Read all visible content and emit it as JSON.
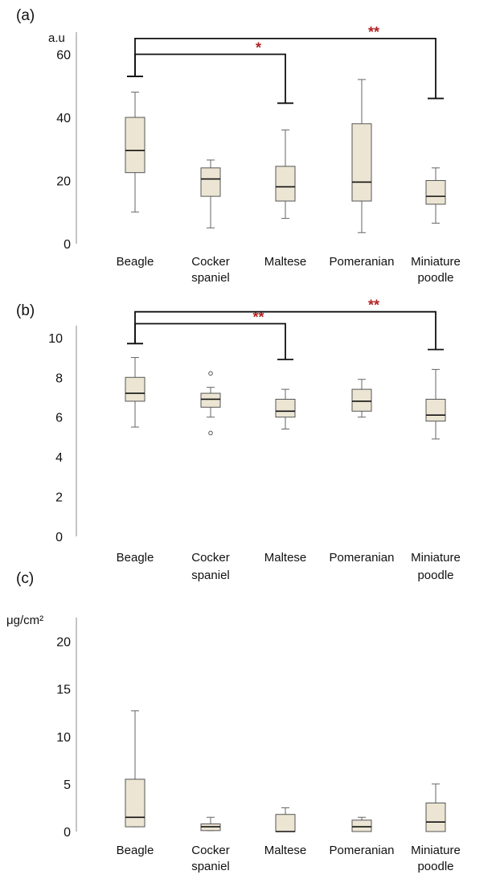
{
  "colors": {
    "box_fill": "#ECE5D3",
    "box_stroke": "#555555",
    "star": "#B22222"
  },
  "chart_data": [
    {
      "type": "box",
      "panel_label": "(a)",
      "ylabel": "a.u",
      "ylim": [
        0,
        67
      ],
      "yticks": [
        0,
        20,
        40,
        60
      ],
      "categories": [
        "Beagle",
        "Cocker spaniel",
        "Maltese",
        "Pomeranian",
        "Miniature poodle"
      ],
      "category_lines": [
        [
          "Beagle"
        ],
        [
          "Cocker",
          "spaniel"
        ],
        [
          "Maltese"
        ],
        [
          "Pomeranian"
        ],
        [
          "Miniature",
          "poodle"
        ]
      ],
      "boxes": [
        {
          "min": 10,
          "q1": 22.5,
          "median": 29.5,
          "q3": 40,
          "max": 48
        },
        {
          "min": 5,
          "q1": 15,
          "median": 20.5,
          "q3": 24,
          "max": 26.5
        },
        {
          "min": 8,
          "q1": 13.5,
          "median": 18,
          "q3": 24.5,
          "max": 36
        },
        {
          "min": 3.5,
          "q1": 13.5,
          "median": 19.5,
          "q3": 38,
          "max": 52
        },
        {
          "min": 6.5,
          "q1": 12.5,
          "median": 15,
          "q3": 20,
          "max": 24
        }
      ],
      "outliers": [],
      "significance": [
        {
          "from": 0,
          "to": 2,
          "label": "*",
          "y": 60,
          "foot_left": 53,
          "foot_right": 44.5
        },
        {
          "from": 0,
          "to": 4,
          "label": "**",
          "y": 65,
          "foot_left": 53,
          "foot_right": 46
        }
      ]
    },
    {
      "type": "box",
      "panel_label": "(b)",
      "ylabel": "",
      "ylim": [
        0,
        10.6
      ],
      "yticks": [
        0,
        2,
        4,
        6,
        8,
        10
      ],
      "categories": [
        "Beagle",
        "Cocker spaniel",
        "Maltese",
        "Pomeranian",
        "Miniature poodle"
      ],
      "category_lines": [
        [
          "Beagle"
        ],
        [
          "Cocker",
          "spaniel"
        ],
        [
          "Maltese"
        ],
        [
          "Pomeranian"
        ],
        [
          "Miniature",
          "poodle"
        ]
      ],
      "boxes": [
        {
          "min": 5.5,
          "q1": 6.8,
          "median": 7.2,
          "q3": 8.0,
          "max": 9.0
        },
        {
          "min": 6.0,
          "q1": 6.5,
          "median": 6.9,
          "q3": 7.2,
          "max": 7.5
        },
        {
          "min": 5.4,
          "q1": 6.0,
          "median": 6.3,
          "q3": 6.9,
          "max": 7.4
        },
        {
          "min": 6.0,
          "q1": 6.3,
          "median": 6.8,
          "q3": 7.4,
          "max": 7.9
        },
        {
          "min": 4.9,
          "q1": 5.8,
          "median": 6.1,
          "q3": 6.9,
          "max": 8.4
        }
      ],
      "outliers": [
        {
          "category": 1,
          "value": 8.2
        },
        {
          "category": 1,
          "value": 5.2
        }
      ],
      "significance": [
        {
          "from": 0,
          "to": 2,
          "label": "**",
          "y": 10.7,
          "foot_left": 9.7,
          "foot_right": 8.9
        },
        {
          "from": 0,
          "to": 4,
          "label": "**",
          "y": 11.3,
          "foot_left": 9.7,
          "foot_right": 9.4
        }
      ]
    },
    {
      "type": "box",
      "panel_label": "(c)",
      "ylabel": "μg/cm²",
      "ylim": [
        0,
        22.5
      ],
      "yticks": [
        0,
        5,
        10,
        15,
        20
      ],
      "categories": [
        "Beagle",
        "Cocker spaniel",
        "Maltese",
        "Pomeranian",
        "Miniature poodle"
      ],
      "category_lines": [
        [
          "Beagle"
        ],
        [
          "Cocker",
          "spaniel"
        ],
        [
          "Maltese"
        ],
        [
          "Pomeranian"
        ],
        [
          "Miniature",
          "poodle"
        ]
      ],
      "boxes": [
        {
          "min": 0.5,
          "q1": 0.5,
          "median": 1.5,
          "q3": 5.5,
          "max": 12.7
        },
        {
          "min": 0.1,
          "q1": 0.1,
          "median": 0.5,
          "q3": 0.8,
          "max": 1.5
        },
        {
          "min": 0,
          "q1": 0,
          "median": 0,
          "q3": 1.8,
          "max": 2.5
        },
        {
          "min": 0,
          "q1": 0,
          "median": 0.5,
          "q3": 1.2,
          "max": 1.5
        },
        {
          "min": 0,
          "q1": 0,
          "median": 1.0,
          "q3": 3.0,
          "max": 5.0
        }
      ],
      "outliers": [],
      "significance": []
    }
  ]
}
